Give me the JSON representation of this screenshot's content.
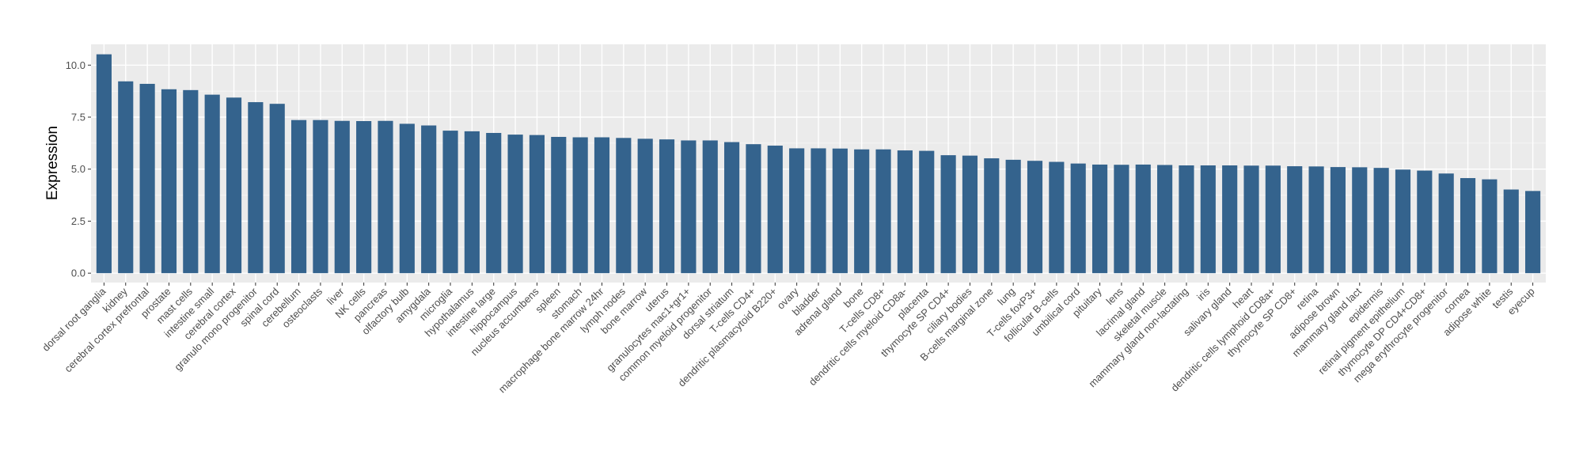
{
  "chart_data": {
    "type": "bar",
    "title": "",
    "xlabel": "",
    "ylabel": "Expression",
    "ylim": [
      -0.45,
      11.0
    ],
    "yticks": [
      0.0,
      2.5,
      5.0,
      7.5,
      10.0
    ],
    "ytick_labels": [
      "0.0",
      "2.5",
      "5.0",
      "7.5",
      "10.0"
    ],
    "grid": true,
    "legend": "none",
    "colors": {
      "bar": "#34638d",
      "panel": "#ebebeb",
      "grid": "#ffffff",
      "tick_text": "#4d4d4d"
    },
    "categories": [
      "dorsal root ganglia",
      "kidney",
      "cerebral cortex prefrontal",
      "prostate",
      "mast cells",
      "intestine small",
      "cerebral cortex",
      "granulo mono progenitor",
      "spinal cord",
      "cerebellum",
      "osteoclasts",
      "liver",
      "NK cells",
      "pancreas",
      "olfactory bulb",
      "amygdala",
      "microglia",
      "hypothalamus",
      "intestine large",
      "hippocampus",
      "nucleus accumbens",
      "spleen",
      "stomach",
      "macrophage bone marrow 24hr",
      "lymph nodes",
      "bone marrow",
      "uterus",
      "granulocytes mac1+gr1+",
      "common myeloid progenitor",
      "dorsal striatum",
      "T-cells CD4+",
      "dendritic plasmacytoid B220+",
      "ovary",
      "bladder",
      "adrenal gland",
      "bone",
      "T-cells CD8+",
      "dendritic cells myeloid CD8a-",
      "placenta",
      "thymocyte SP CD4+",
      "ciliary bodies",
      "B-cells marginal zone",
      "lung",
      "T-cells foxP3+",
      "follicular B-cells",
      "umbilical cord",
      "pituitary",
      "lens",
      "lacrimal gland",
      "skeletal muscle",
      "mammary gland non-lactating",
      "iris",
      "salivary gland",
      "heart",
      "dendritic cells lymphoid CD8a+",
      "thymocyte SP CD8+",
      "retina",
      "adipose brown",
      "mammary gland  lact",
      "epidermis",
      "retinal pigment epithelium",
      "thymocyte DP CD4+CD8+",
      "mega erythrocyte progenitor",
      "cornea",
      "adipose white",
      "testis",
      "eyecup"
    ],
    "values": [
      10.52,
      9.22,
      9.1,
      8.84,
      8.8,
      8.58,
      8.44,
      8.22,
      8.14,
      7.36,
      7.36,
      7.32,
      7.31,
      7.32,
      7.18,
      7.1,
      6.85,
      6.82,
      6.74,
      6.66,
      6.64,
      6.55,
      6.53,
      6.53,
      6.5,
      6.46,
      6.43,
      6.38,
      6.38,
      6.3,
      6.2,
      6.13,
      6.0,
      6.0,
      5.99,
      5.95,
      5.95,
      5.9,
      5.88,
      5.67,
      5.65,
      5.52,
      5.45,
      5.4,
      5.35,
      5.27,
      5.22,
      5.21,
      5.22,
      5.2,
      5.18,
      5.18,
      5.18,
      5.17,
      5.17,
      5.14,
      5.13,
      5.1,
      5.09,
      5.06,
      4.98,
      4.93,
      4.79,
      4.57,
      4.51,
      4.02,
      3.95
    ]
  }
}
